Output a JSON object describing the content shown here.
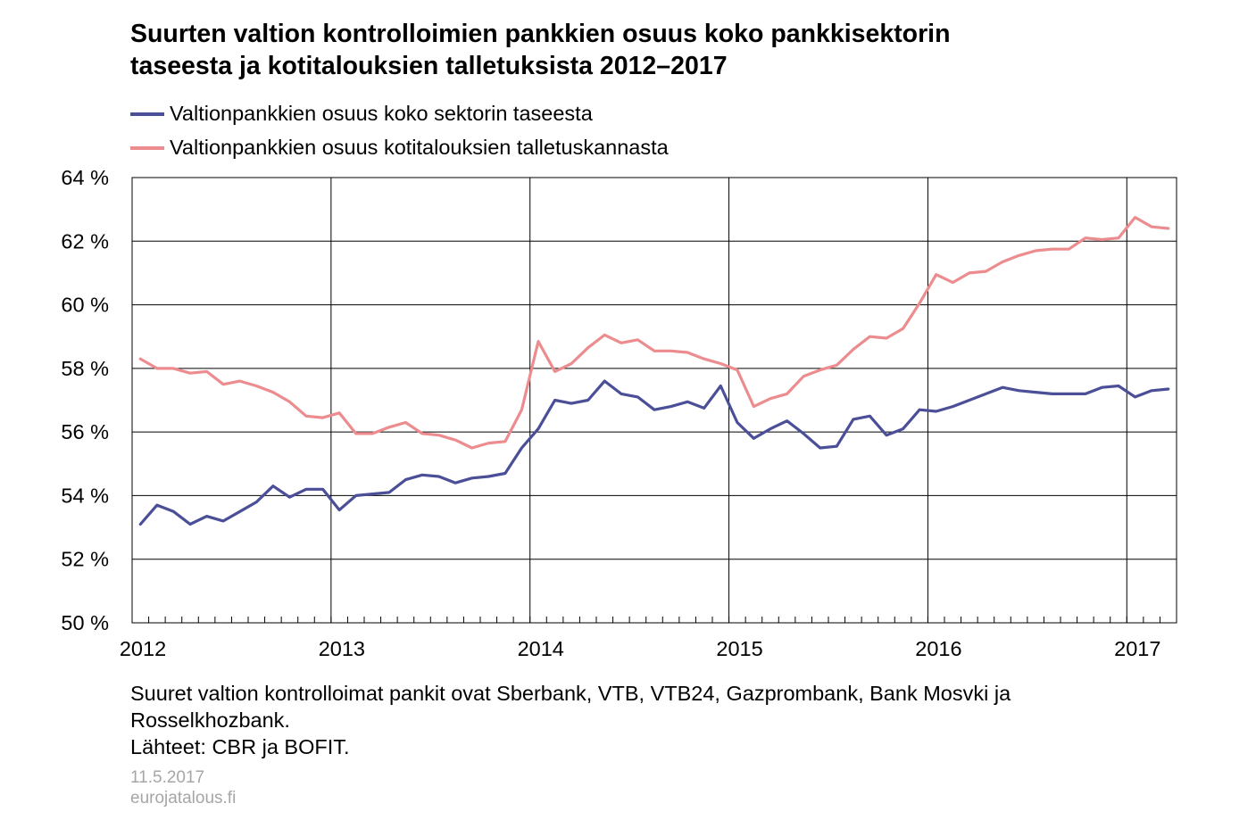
{
  "header": {
    "title_line1": "Suurten valtion kontrolloimien pankkien osuus koko pankkisektorin",
    "title_line2": "taseesta ja kotitalouksien talletuksista 2012–2017"
  },
  "footer": {
    "note_line1": "Suuret valtion kontrolloimat pankit ovat Sberbank, VTB, VTB24, Gazprombank, Bank Mosvki ja",
    "note_line2": "Rosselkhozbank.",
    "sources": "Lähteet: CBR ja BOFIT.",
    "date": "11.5.2017",
    "site": "eurojatalous.fi"
  },
  "chart_data": {
    "type": "line",
    "title": "Suurten valtion kontrolloimien pankkien osuus koko pankkisektorin taseesta ja kotitalouksien talletuksista 2012–2017",
    "xlabel": "",
    "ylabel": "",
    "ylim": [
      50,
      64
    ],
    "y_ticks": [
      50,
      52,
      54,
      56,
      58,
      60,
      62,
      64
    ],
    "y_tick_labels": [
      "50 %",
      "52 %",
      "54 %",
      "56 %",
      "58 %",
      "60 %",
      "62 %",
      "64 %"
    ],
    "x_tick_labels": [
      "2012",
      "2013",
      "2014",
      "2015",
      "2016",
      "2017"
    ],
    "x_range": [
      "2012-01",
      "2017-04"
    ],
    "x": [
      "2012-01",
      "2012-02",
      "2012-03",
      "2012-04",
      "2012-05",
      "2012-06",
      "2012-07",
      "2012-08",
      "2012-09",
      "2012-10",
      "2012-11",
      "2012-12",
      "2013-01",
      "2013-02",
      "2013-03",
      "2013-04",
      "2013-05",
      "2013-06",
      "2013-07",
      "2013-08",
      "2013-09",
      "2013-10",
      "2013-11",
      "2013-12",
      "2014-01",
      "2014-02",
      "2014-03",
      "2014-04",
      "2014-05",
      "2014-06",
      "2014-07",
      "2014-08",
      "2014-09",
      "2014-10",
      "2014-11",
      "2014-12",
      "2015-01",
      "2015-02",
      "2015-03",
      "2015-04",
      "2015-05",
      "2015-06",
      "2015-07",
      "2015-08",
      "2015-09",
      "2015-10",
      "2015-11",
      "2015-12",
      "2016-01",
      "2016-02",
      "2016-03",
      "2016-04",
      "2016-05",
      "2016-06",
      "2016-07",
      "2016-08",
      "2016-09",
      "2016-10",
      "2016-11",
      "2016-12",
      "2017-01",
      "2017-02",
      "2017-03"
    ],
    "grid": "vertical lines at year starts, horizontal lines at each y tick",
    "legend_position": "top-left",
    "series": [
      {
        "name": "Valtionpankkien osuus koko sektorin taseesta",
        "color": "#4a4f98",
        "values": [
          53.1,
          53.7,
          53.5,
          53.1,
          53.35,
          53.2,
          53.5,
          53.8,
          54.3,
          53.95,
          54.2,
          54.2,
          53.55,
          54.0,
          54.05,
          54.1,
          54.5,
          54.65,
          54.6,
          54.4,
          54.55,
          54.6,
          54.7,
          55.5,
          56.1,
          57.0,
          56.9,
          57.0,
          57.6,
          57.2,
          57.1,
          56.7,
          56.8,
          56.95,
          56.75,
          57.45,
          56.3,
          55.8,
          56.1,
          56.35,
          55.95,
          55.5,
          55.55,
          56.4,
          56.5,
          55.9,
          56.1,
          56.7,
          56.65,
          56.8,
          57.0,
          57.2,
          57.4,
          57.3,
          57.25,
          57.2,
          57.2,
          57.2,
          57.4,
          57.45,
          57.1,
          57.3,
          57.35
        ]
      },
      {
        "name": "Valtionpankkien osuus kotitalouksien talletuskannasta",
        "color": "#ec8c8f",
        "values": [
          58.3,
          58.0,
          58.0,
          57.85,
          57.9,
          57.5,
          57.6,
          57.45,
          57.25,
          56.95,
          56.5,
          56.45,
          56.6,
          55.95,
          55.95,
          56.15,
          56.3,
          55.95,
          55.9,
          55.75,
          55.5,
          55.65,
          55.7,
          56.7,
          58.85,
          57.9,
          58.15,
          58.65,
          59.05,
          58.8,
          58.9,
          58.55,
          58.55,
          58.5,
          58.3,
          58.15,
          57.95,
          56.8,
          57.05,
          57.2,
          57.75,
          57.95,
          58.1,
          58.6,
          59.0,
          58.95,
          59.25,
          60.05,
          60.95,
          60.7,
          61.0,
          61.05,
          61.35,
          61.55,
          61.7,
          61.75,
          61.75,
          62.1,
          62.05,
          62.1,
          62.75,
          62.45,
          62.4
        ]
      }
    ]
  }
}
